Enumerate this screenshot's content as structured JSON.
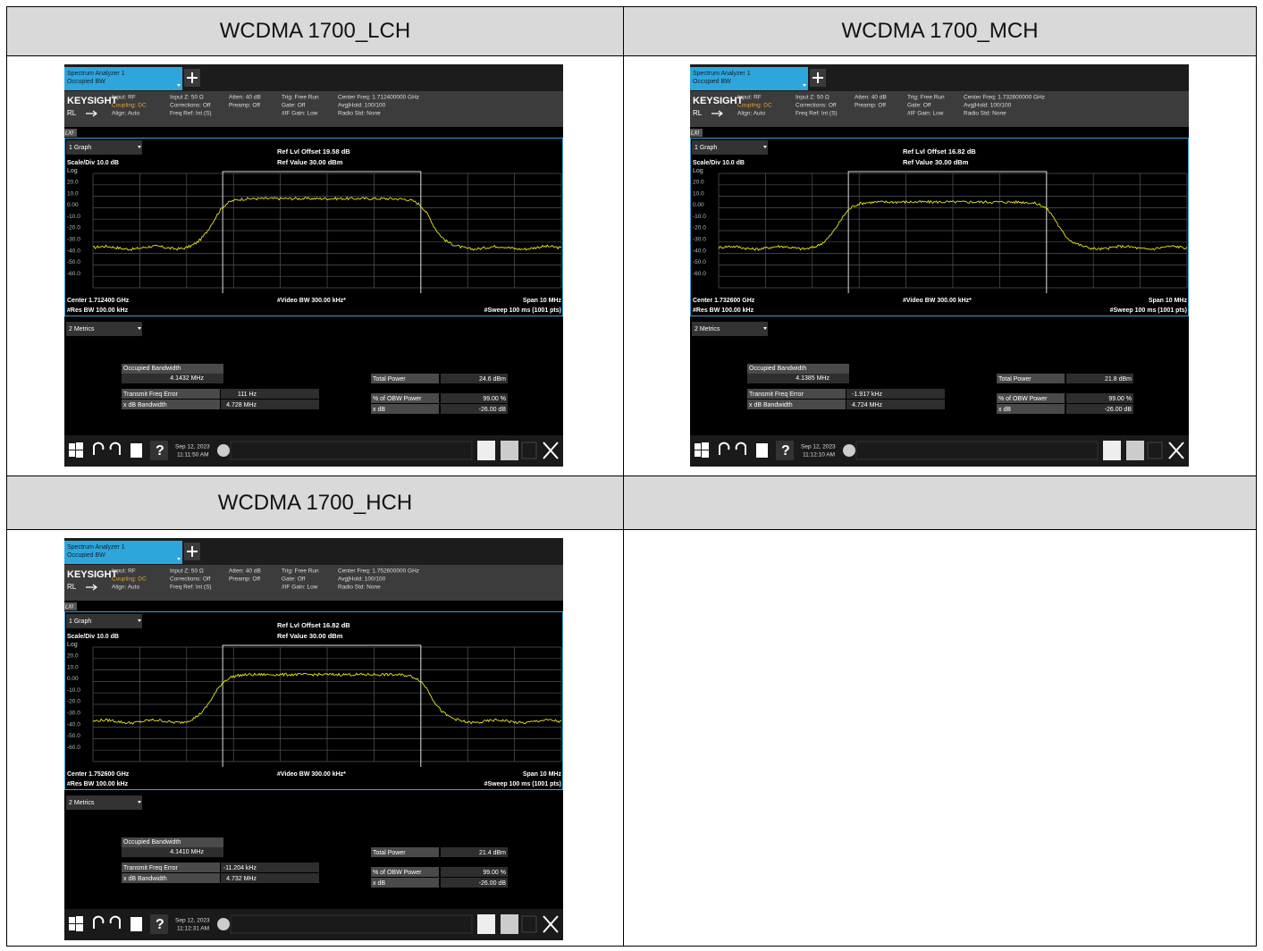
{
  "headers": [
    "WCDMA 1700_LCH",
    "WCDMA 1700_MCH",
    "WCDMA 1700_HCH"
  ],
  "panels": [
    {
      "tab_title": "Spectrum Analyzer 1",
      "tab_subtitle": "Occupied BW",
      "brand": "KEYSIGHT",
      "rl": "RL",
      "info": [
        [
          "Input: RF",
          "Coupling: DC",
          "Align: Auto"
        ],
        [
          "Input Z: 50 Ω",
          "Corrections: Off",
          "Freq Ref: Int (S)"
        ],
        [
          "Atten: 40 dB",
          "Preamp: Off"
        ],
        [
          "Trig: Free Run",
          "Gate: Off",
          "#IF Gain: Low"
        ],
        [
          "Center Freq: 1.712400000 GHz",
          "Avg|Hold: 100/100",
          "Radio Std: None"
        ]
      ],
      "lxi": "LXI",
      "graph_menu": "1 Graph",
      "scale": "Scale/Div 10.0 dB",
      "ref_offset": "Ref Lvl Offset 19.58 dB",
      "ref_value": "Ref Value 30.00 dBm",
      "y_scale": "Log",
      "y_labels": [
        "20.0",
        "10.0",
        "0.00",
        "-10.0",
        "-20.0",
        "-30.0",
        "-40.0",
        "-50.0",
        "-60.0"
      ],
      "center": "Center 1.712400 GHz",
      "res_bw": "#Res BW 100.00 kHz",
      "video_bw": "#Video BW 300.00 kHz*",
      "span": "Span 10 MHz",
      "sweep": "#Sweep 100 ms (1001 pts)",
      "metrics_menu": "2 Metrics",
      "obw": {
        "label": "Occupied Bandwidth",
        "value": "4.1432 MHz"
      },
      "left_rows": [
        [
          "Transmit Freq Error",
          "111 Hz"
        ],
        [
          "x dB Bandwidth",
          "4.728 MHz"
        ]
      ],
      "right_rows": [
        [
          "Total Power",
          "24.6 dBm"
        ],
        [
          "% of OBW Power",
          "99.00 %"
        ],
        [
          "x dB",
          "-26.00 dB"
        ]
      ],
      "date": "Sep 12, 2023",
      "time": "11:11:50 AM"
    },
    {
      "tab_title": "Spectrum Analyzer 1",
      "tab_subtitle": "Occupied BW",
      "brand": "KEYSIGHT",
      "rl": "RL",
      "info": [
        [
          "Input: RF",
          "Coupling: DC",
          "Align: Auto"
        ],
        [
          "Input Z: 50 Ω",
          "Corrections: Off",
          "Freq Ref: Int (S)"
        ],
        [
          "Atten: 40 dB",
          "Preamp: Off"
        ],
        [
          "Trig: Free Run",
          "Gate: Off",
          "#IF Gain: Low"
        ],
        [
          "Center Freq: 1.732600000 GHz",
          "Avg|Hold: 100/100",
          "Radio Std: None"
        ]
      ],
      "lxi": "LXI",
      "graph_menu": "1 Graph",
      "scale": "Scale/Div 10.0 dB",
      "ref_offset": "Ref Lvl Offset 16.82 dB",
      "ref_value": "Ref Value 30.00 dBm",
      "y_scale": "Log",
      "y_labels": [
        "20.0",
        "10.0",
        "0.00",
        "-10.0",
        "-20.0",
        "-30.0",
        "-40.0",
        "-50.0",
        "-60.0"
      ],
      "center": "Center 1.732600 GHz",
      "res_bw": "#Res BW 100.00 kHz",
      "video_bw": "#Video BW 300.00 kHz*",
      "span": "Span 10 MHz",
      "sweep": "#Sweep 100 ms (1001 pts)",
      "metrics_menu": "2 Metrics",
      "obw": {
        "label": "Occupied Bandwidth",
        "value": "4.1385 MHz"
      },
      "left_rows": [
        [
          "Transmit Freq Error",
          "-1.917 kHz"
        ],
        [
          "x dB Bandwidth",
          "4.724 MHz"
        ]
      ],
      "right_rows": [
        [
          "Total Power",
          "21.8 dBm"
        ],
        [
          "% of OBW Power",
          "99.00 %"
        ],
        [
          "x dB",
          "-26.00 dB"
        ]
      ],
      "date": "Sep 12, 2023",
      "time": "11:12:10 AM"
    },
    {
      "tab_title": "Spectrum Analyzer 1",
      "tab_subtitle": "Occupied BW",
      "brand": "KEYSIGHT",
      "rl": "RL",
      "info": [
        [
          "Input: RF",
          "Coupling: DC",
          "Align: Auto"
        ],
        [
          "Input Z: 50 Ω",
          "Corrections: Off",
          "Freq Ref: Int (S)"
        ],
        [
          "Atten: 40 dB",
          "Preamp: Off"
        ],
        [
          "Trig: Free Run",
          "Gate: Off",
          "#IF Gain: Low"
        ],
        [
          "Center Freq: 1.752600000 GHz",
          "Avg|Hold: 100/100",
          "Radio Std: None"
        ]
      ],
      "lxi": "LXI",
      "graph_menu": "1 Graph",
      "scale": "Scale/Div 10.0 dB",
      "ref_offset": "Ref Lvl Offset 16.82 dB",
      "ref_value": "Ref Value 30.00 dBm",
      "y_scale": "Log",
      "y_labels": [
        "20.0",
        "10.0",
        "0.00",
        "-10.0",
        "-20.0",
        "-30.0",
        "-40.0",
        "-50.0",
        "-60.0"
      ],
      "center": "Center 1.752600 GHz",
      "res_bw": "#Res BW 100.00 kHz",
      "video_bw": "#Video BW 300.00 kHz*",
      "span": "Span 10 MHz",
      "sweep": "#Sweep 100 ms (1001 pts)",
      "metrics_menu": "2 Metrics",
      "obw": {
        "label": "Occupied Bandwidth",
        "value": "4.1410 MHz"
      },
      "left_rows": [
        [
          "Transmit Freq Error",
          "-11.204 kHz"
        ],
        [
          "x dB Bandwidth",
          "4.732 MHz"
        ]
      ],
      "right_rows": [
        [
          "Total Power",
          "21.4 dBm"
        ],
        [
          "% of OBW Power",
          "99.00 %"
        ],
        [
          "x dB",
          "-26.00 dB"
        ]
      ],
      "date": "Sep 12, 2023",
      "time": "11:12:31 AM"
    }
  ]
}
